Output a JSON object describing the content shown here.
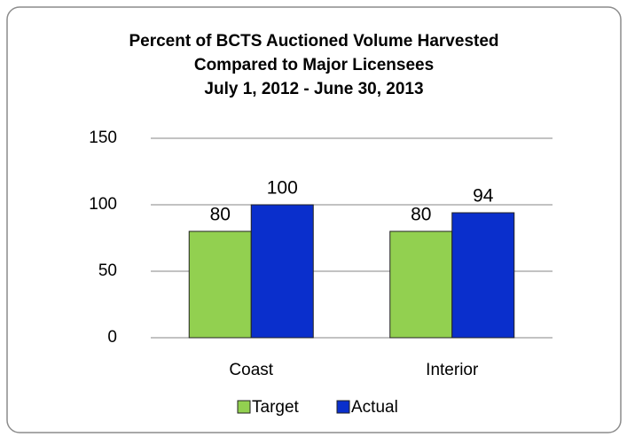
{
  "chart_data": {
    "type": "bar",
    "title": [
      "Percent of BCTS Auctioned Volume Harvested",
      "Compared to Major Licensees",
      "July 1, 2012 - June 30, 2013"
    ],
    "categories": [
      "Coast",
      "Interior"
    ],
    "series": [
      {
        "name": "Target",
        "color": "#92d050",
        "values": [
          80,
          80
        ]
      },
      {
        "name": "Actual",
        "color": "#0a2fcc",
        "values": [
          100,
          94
        ]
      }
    ],
    "ylim": [
      0,
      150
    ],
    "yticks": [
      0,
      50,
      100,
      150
    ],
    "grid": true,
    "legend": "bottom"
  }
}
